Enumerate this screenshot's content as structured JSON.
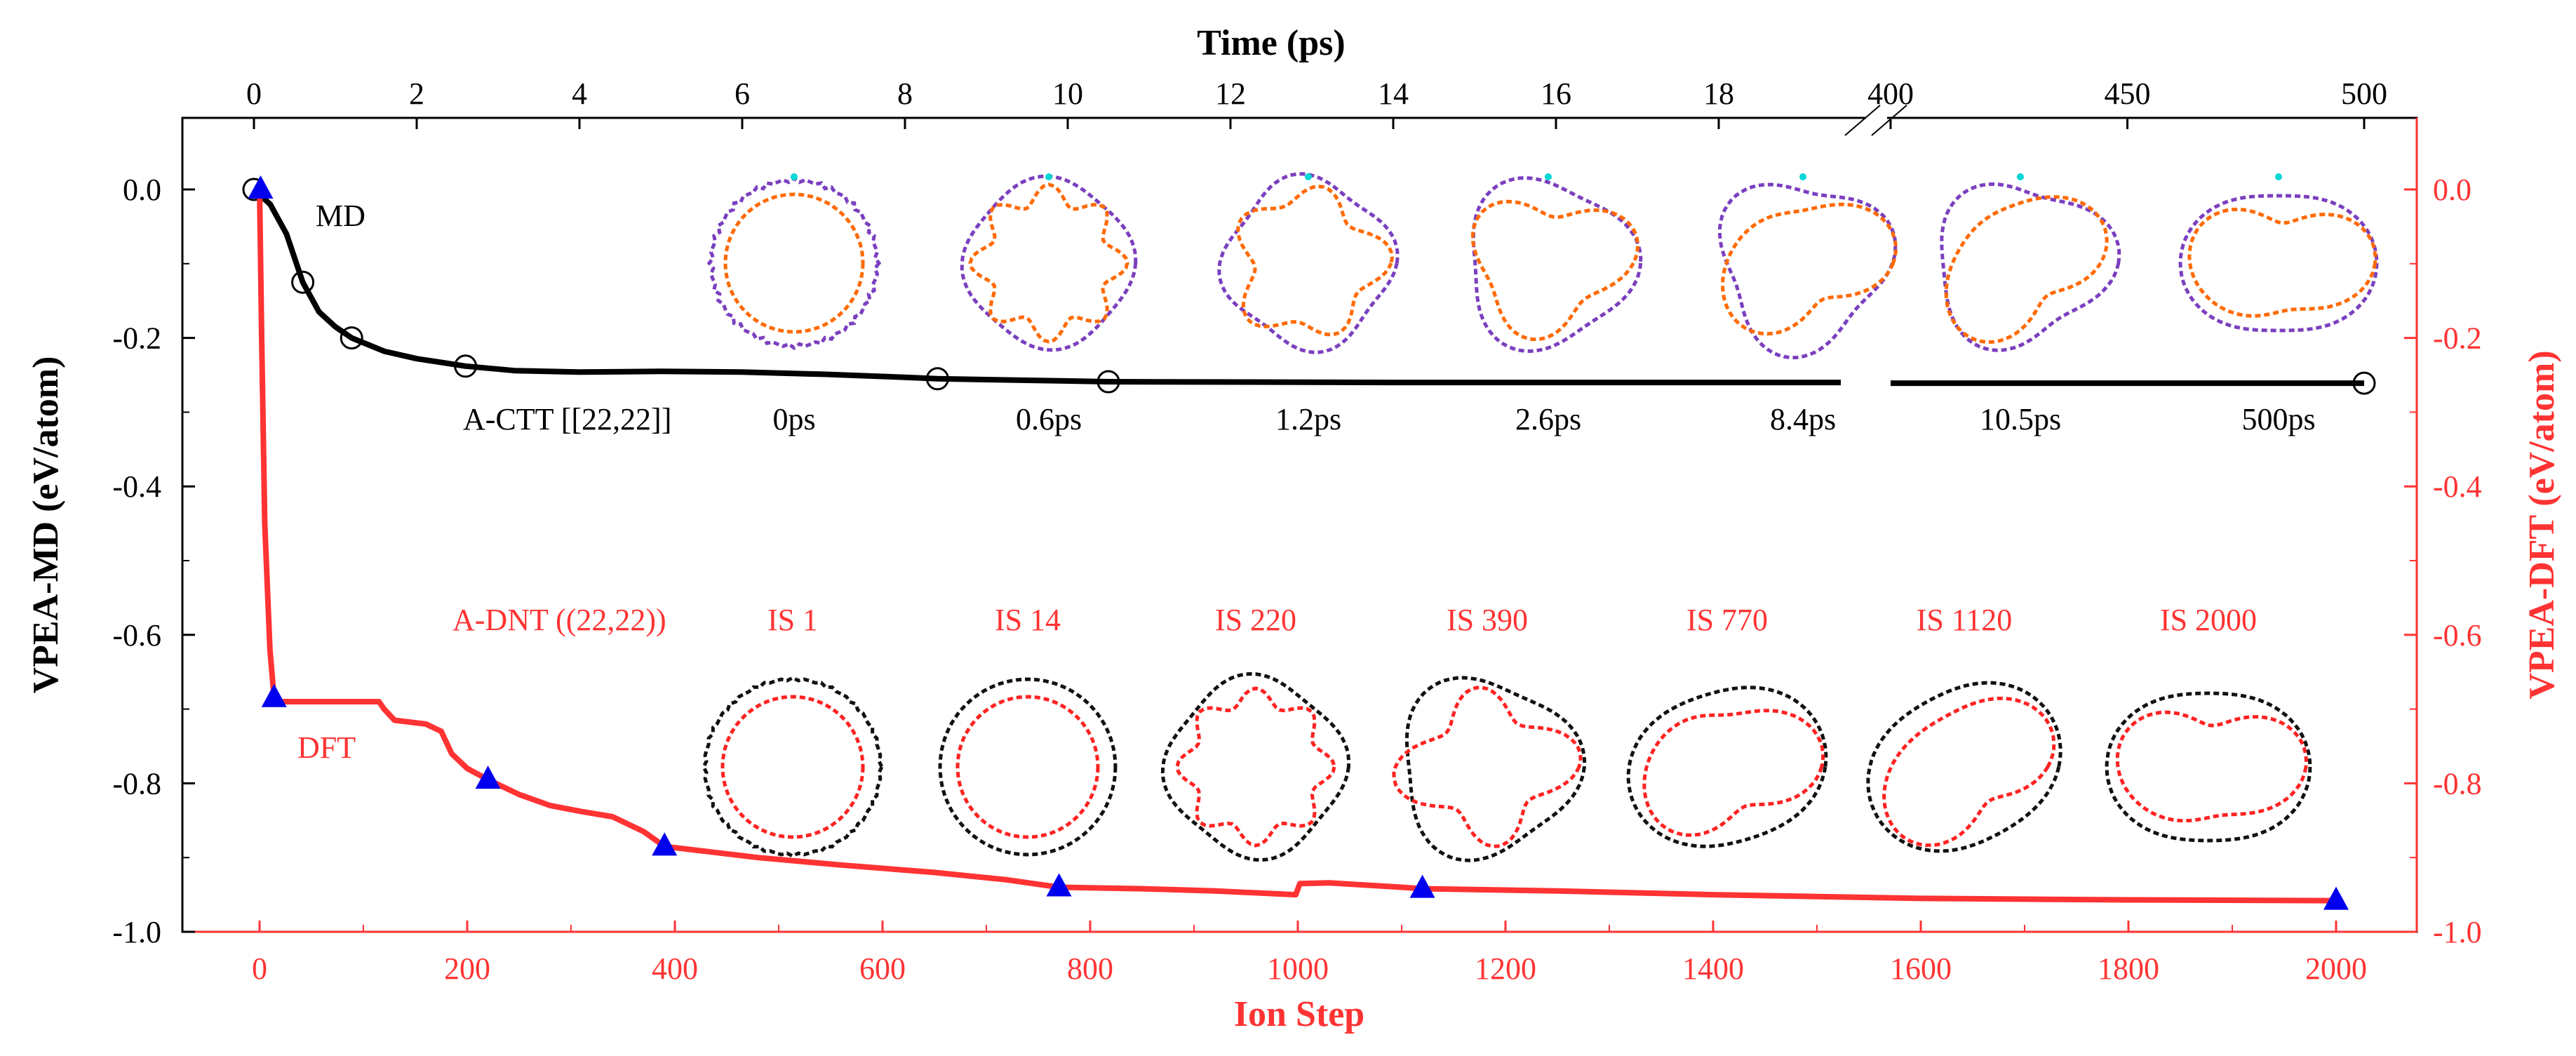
{
  "chart_data": {
    "type": "line",
    "title": "",
    "colors": {
      "md": "#000000",
      "dft": "#ff3333",
      "marker": "#0000ee",
      "outer_tube": "#7b3fbf",
      "inner_tube": "#ff6a00",
      "cyan_atom": "#00d7d7",
      "dnt_outer": "#111111",
      "dnt_inner": "#ff2222"
    },
    "axes": {
      "bottom": {
        "label": "Ion Step",
        "range": [
          0,
          2000
        ],
        "ticks": [
          0,
          200,
          400,
          600,
          800,
          1000,
          1200,
          1400,
          1600,
          1800,
          2000
        ]
      },
      "top": {
        "label": "Time (ps)",
        "segment1": {
          "range": [
            0,
            20
          ],
          "ticks": [
            0,
            2,
            4,
            6,
            8,
            10,
            12,
            14,
            16,
            18
          ]
        },
        "break_mark": "//",
        "segment2": {
          "range": [
            400,
            500
          ],
          "ticks": [
            400,
            450,
            500
          ]
        }
      },
      "left": {
        "label": "VPEA-MD (eV/atom)",
        "range": [
          -1.0,
          0.1
        ],
        "ticks": [
          0.0,
          -0.2,
          -0.4,
          -0.6,
          -0.8,
          -1.0
        ],
        "tick_labels": [
          "0.0",
          "-0.2",
          "-0.4",
          "-0.6",
          "-0.8",
          "-1.0"
        ]
      },
      "right": {
        "label": "VPEA-DFT (eV/atom)",
        "range": [
          -1.0,
          0.1
        ],
        "ticks": [
          0.0,
          -0.2,
          -0.4,
          -0.6,
          -0.8,
          -1.0
        ],
        "tick_labels": [
          "0.0",
          "-0.2",
          "-0.4",
          "-0.6",
          "-0.8",
          "-1.0"
        ]
      }
    },
    "series": [
      {
        "name": "MD",
        "x_axis": "top",
        "x_unit": "ps",
        "points": [
          [
            0,
            0.0
          ],
          [
            0.2,
            -0.02
          ],
          [
            0.4,
            -0.06
          ],
          [
            0.6,
            -0.125
          ],
          [
            0.8,
            -0.165
          ],
          [
            1.0,
            -0.185
          ],
          [
            1.2,
            -0.2
          ],
          [
            1.6,
            -0.218
          ],
          [
            2.0,
            -0.228
          ],
          [
            2.6,
            -0.238
          ],
          [
            3.2,
            -0.244
          ],
          [
            4,
            -0.246
          ],
          [
            5,
            -0.245
          ],
          [
            6,
            -0.246
          ],
          [
            7,
            -0.249
          ],
          [
            8,
            -0.253
          ],
          [
            8.4,
            -0.255
          ],
          [
            10.5,
            -0.259
          ],
          [
            14,
            -0.26
          ],
          [
            17,
            -0.26
          ],
          [
            19.5,
            -0.26
          ],
          [
            400,
            -0.261
          ],
          [
            450,
            -0.261
          ],
          [
            500,
            -0.261
          ]
        ],
        "markers": [
          [
            0,
            0.0
          ],
          [
            0.6,
            -0.125
          ],
          [
            1.2,
            -0.2
          ],
          [
            2.6,
            -0.238
          ],
          [
            8.4,
            -0.255
          ],
          [
            10.5,
            -0.259
          ],
          [
            500,
            -0.261
          ]
        ]
      },
      {
        "name": "DFT",
        "x_axis": "bottom",
        "points": [
          [
            0,
            0.0
          ],
          [
            2,
            -0.2
          ],
          [
            5,
            -0.45
          ],
          [
            10,
            -0.62
          ],
          [
            14,
            -0.685
          ],
          [
            20,
            -0.69
          ],
          [
            60,
            -0.69
          ],
          [
            115,
            -0.69
          ],
          [
            120,
            -0.7
          ],
          [
            130,
            -0.715
          ],
          [
            160,
            -0.72
          ],
          [
            175,
            -0.73
          ],
          [
            185,
            -0.76
          ],
          [
            200,
            -0.78
          ],
          [
            220,
            -0.795
          ],
          [
            250,
            -0.815
          ],
          [
            280,
            -0.83
          ],
          [
            310,
            -0.838
          ],
          [
            340,
            -0.845
          ],
          [
            370,
            -0.865
          ],
          [
            390,
            -0.885
          ],
          [
            420,
            -0.89
          ],
          [
            480,
            -0.9
          ],
          [
            560,
            -0.91
          ],
          [
            650,
            -0.92
          ],
          [
            720,
            -0.93
          ],
          [
            770,
            -0.94
          ],
          [
            850,
            -0.942
          ],
          [
            920,
            -0.945
          ],
          [
            998,
            -0.95
          ],
          [
            1002,
            -0.935
          ],
          [
            1030,
            -0.934
          ],
          [
            1100,
            -0.94
          ],
          [
            1120,
            -0.942
          ],
          [
            1250,
            -0.945
          ],
          [
            1400,
            -0.95
          ],
          [
            1600,
            -0.955
          ],
          [
            1800,
            -0.957
          ],
          [
            2000,
            -0.958
          ]
        ],
        "markers": [
          [
            1,
            0.0
          ],
          [
            14,
            -0.685
          ],
          [
            220,
            -0.795
          ],
          [
            390,
            -0.885
          ],
          [
            770,
            -0.94
          ],
          [
            1120,
            -0.942
          ],
          [
            2000,
            -0.958
          ]
        ]
      }
    ],
    "annotations": {
      "md_label": "MD",
      "dft_label": "DFT",
      "md_row_title": "A-CTT [[22,22]]",
      "dft_row_title": "A-DNT ((22,22))",
      "md_snapshots": [
        "0ps",
        "0.6ps",
        "1.2ps",
        "2.6ps",
        "8.4ps",
        "10.5ps",
        "500ps"
      ],
      "dft_snapshots": [
        "IS 1",
        "IS 14",
        "IS 220",
        "IS 390",
        "IS 770",
        "IS 1120",
        "IS 2000"
      ]
    }
  }
}
